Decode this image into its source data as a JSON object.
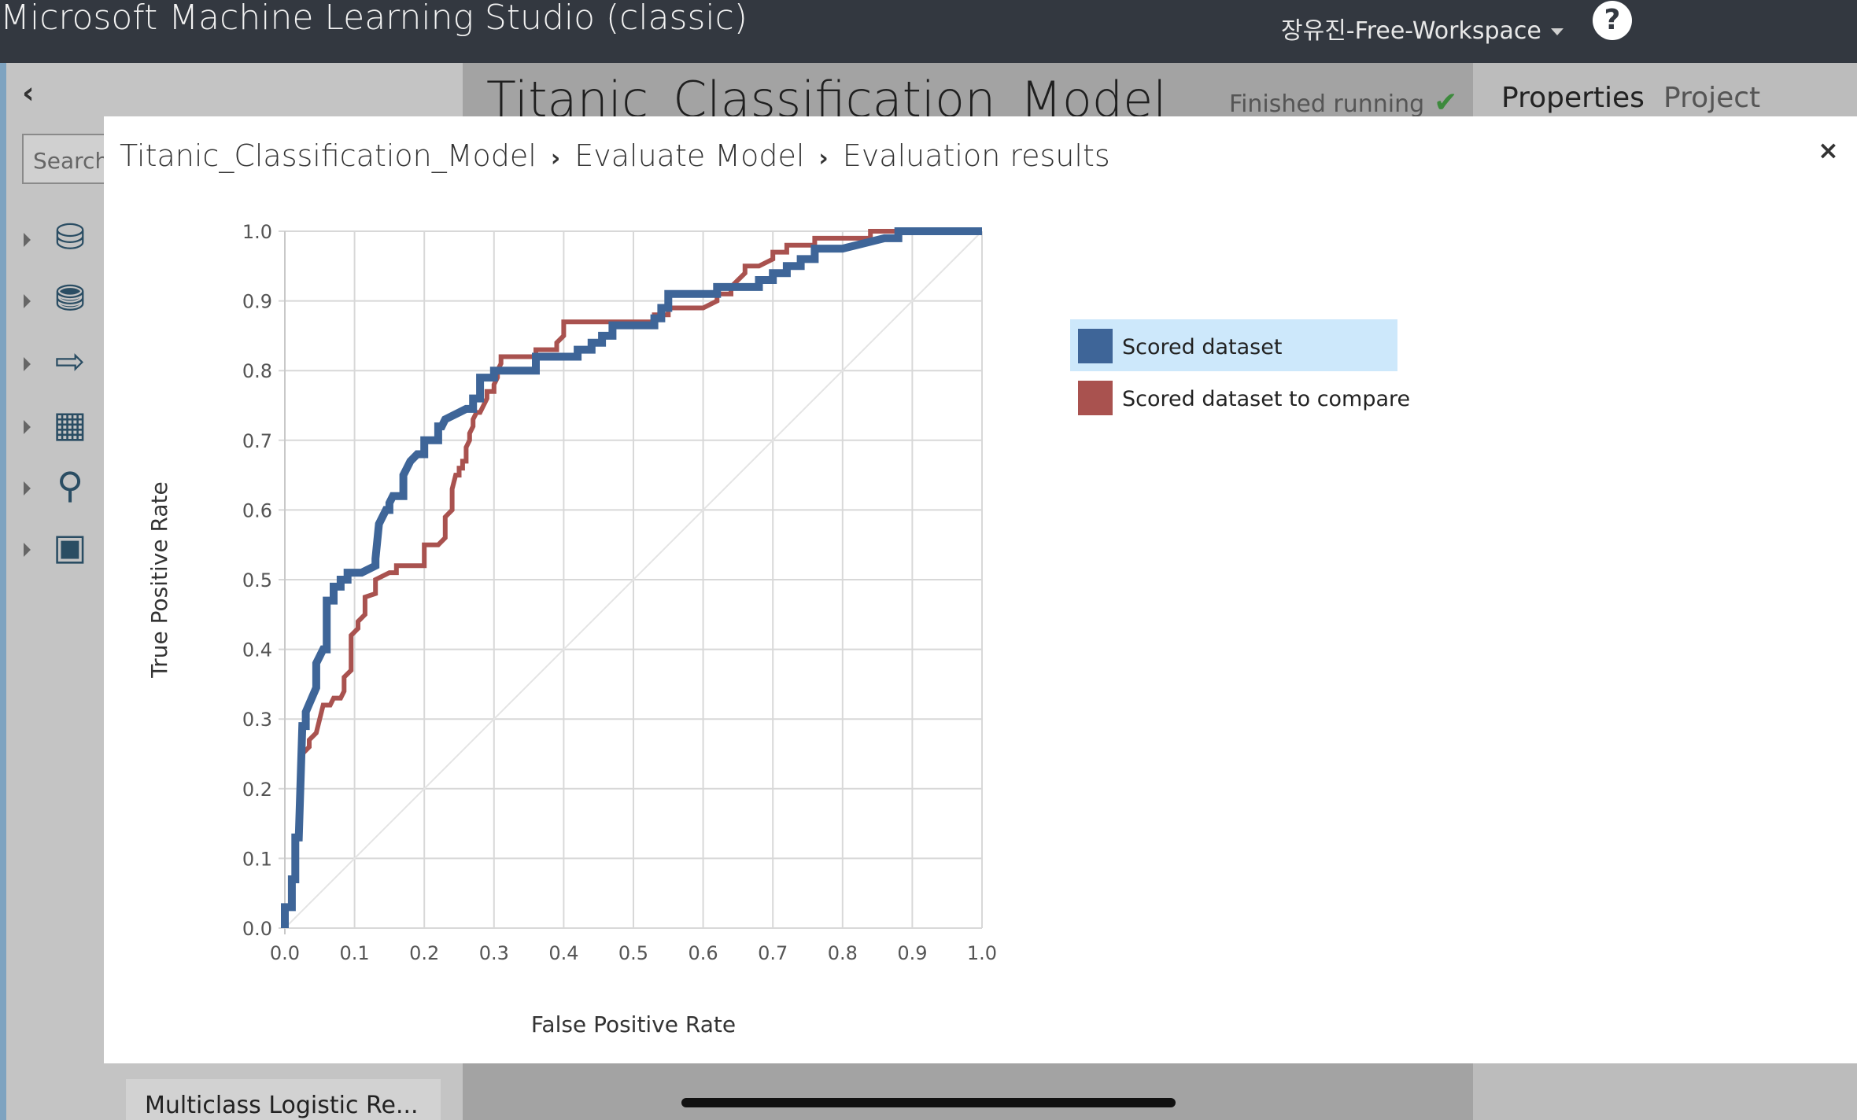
{
  "app": {
    "title": "Microsoft Machine Learning Studio (classic)",
    "workspace": "장유진-Free-Workspace",
    "help_label": "?"
  },
  "background": {
    "search_placeholder": "Search",
    "experiment_title": "Titanic_Classification_Model",
    "status": "Finished running",
    "tabs": [
      "Properties",
      "Project"
    ],
    "bottom_item": "Multiclass Logistic Re..."
  },
  "modal": {
    "breadcrumb": [
      "Titanic_Classification_Model",
      "Evaluate Model",
      "Evaluation results"
    ],
    "close_label": "×"
  },
  "colors": {
    "series1": "#3e6598",
    "series2": "#a9524f",
    "diagonal": "#e4e4e4",
    "grid": "#d8d8d8"
  },
  "chart_data": {
    "type": "line",
    "xlabel": "False Positive Rate",
    "ylabel": "True Positive Rate",
    "xlim": [
      0,
      1
    ],
    "ylim": [
      0,
      1
    ],
    "xticks": [
      "0.0",
      "0.1",
      "0.2",
      "0.3",
      "0.4",
      "0.5",
      "0.6",
      "0.7",
      "0.8",
      "0.9",
      "1.0"
    ],
    "yticks": [
      "0.0",
      "0.1",
      "0.2",
      "0.3",
      "0.4",
      "0.5",
      "0.6",
      "0.7",
      "0.8",
      "0.9",
      "1.0"
    ],
    "grid": true,
    "diagonal_reference": true,
    "legend_placement": "right",
    "series": [
      {
        "name": "Scored dataset",
        "selected": true,
        "x": [
          0,
          0,
          0.01,
          0.01,
          0.015,
          0.015,
          0.02,
          0.025,
          0.03,
          0.03,
          0.045,
          0.045,
          0.05,
          0.055,
          0.06,
          0.06,
          0.07,
          0.07,
          0.08,
          0.08,
          0.09,
          0.09,
          0.11,
          0.13,
          0.13,
          0.135,
          0.14,
          0.145,
          0.15,
          0.15,
          0.155,
          0.16,
          0.17,
          0.17,
          0.18,
          0.19,
          0.19,
          0.2,
          0.2,
          0.21,
          0.22,
          0.22,
          0.225,
          0.23,
          0.25,
          0.26,
          0.27,
          0.27,
          0.28,
          0.28,
          0.29,
          0.29,
          0.3,
          0.3,
          0.33,
          0.36,
          0.36,
          0.38,
          0.42,
          0.42,
          0.44,
          0.44,
          0.455,
          0.455,
          0.47,
          0.47,
          0.49,
          0.53,
          0.53,
          0.54,
          0.54,
          0.55,
          0.55,
          0.62,
          0.62,
          0.66,
          0.68,
          0.68,
          0.7,
          0.7,
          0.72,
          0.72,
          0.74,
          0.74,
          0.76,
          0.76,
          0.8,
          0.86,
          0.86,
          0.88,
          0.88,
          1
        ],
        "y": [
          0,
          0.03,
          0.03,
          0.07,
          0.07,
          0.13,
          0.13,
          0.29,
          0.29,
          0.31,
          0.345,
          0.38,
          0.39,
          0.4,
          0.4,
          0.47,
          0.47,
          0.49,
          0.49,
          0.5,
          0.5,
          0.51,
          0.51,
          0.52,
          0.53,
          0.58,
          0.59,
          0.6,
          0.6,
          0.61,
          0.62,
          0.62,
          0.62,
          0.65,
          0.67,
          0.68,
          0.68,
          0.68,
          0.7,
          0.7,
          0.7,
          0.72,
          0.72,
          0.73,
          0.74,
          0.745,
          0.745,
          0.76,
          0.76,
          0.79,
          0.79,
          0.79,
          0.79,
          0.8,
          0.8,
          0.8,
          0.82,
          0.82,
          0.82,
          0.83,
          0.83,
          0.84,
          0.84,
          0.85,
          0.85,
          0.865,
          0.865,
          0.865,
          0.875,
          0.875,
          0.89,
          0.89,
          0.91,
          0.91,
          0.92,
          0.92,
          0.92,
          0.93,
          0.93,
          0.94,
          0.94,
          0.95,
          0.95,
          0.96,
          0.96,
          0.975,
          0.975,
          0.99,
          0.99,
          0.99,
          1,
          1
        ]
      },
      {
        "name": "Scored dataset to compare",
        "x": [
          0,
          0,
          0.01,
          0.01,
          0.015,
          0.015,
          0.02,
          0.025,
          0.025,
          0.035,
          0.035,
          0.045,
          0.045,
          0.055,
          0.065,
          0.07,
          0.08,
          0.085,
          0.085,
          0.095,
          0.095,
          0.105,
          0.105,
          0.115,
          0.115,
          0.13,
          0.13,
          0.15,
          0.16,
          0.16,
          0.19,
          0.2,
          0.2,
          0.22,
          0.23,
          0.23,
          0.24,
          0.24,
          0.245,
          0.25,
          0.25,
          0.255,
          0.255,
          0.26,
          0.26,
          0.265,
          0.265,
          0.27,
          0.27,
          0.275,
          0.28,
          0.29,
          0.29,
          0.3,
          0.3,
          0.305,
          0.305,
          0.31,
          0.31,
          0.35,
          0.36,
          0.36,
          0.39,
          0.39,
          0.4,
          0.4,
          0.47,
          0.52,
          0.53,
          0.53,
          0.55,
          0.55,
          0.6,
          0.62,
          0.62,
          0.64,
          0.64,
          0.65,
          0.66,
          0.66,
          0.68,
          0.7,
          0.7,
          0.71,
          0.72,
          0.72,
          0.74,
          0.76,
          0.76,
          0.78,
          0.78,
          0.84,
          0.84,
          0.85,
          0.85,
          1
        ],
        "y": [
          0,
          0.03,
          0.03,
          0.07,
          0.07,
          0.13,
          0.13,
          0.23,
          0.25,
          0.26,
          0.27,
          0.28,
          0.28,
          0.32,
          0.32,
          0.33,
          0.33,
          0.34,
          0.36,
          0.37,
          0.42,
          0.43,
          0.44,
          0.45,
          0.475,
          0.48,
          0.5,
          0.51,
          0.51,
          0.52,
          0.52,
          0.52,
          0.55,
          0.55,
          0.56,
          0.59,
          0.6,
          0.63,
          0.65,
          0.65,
          0.66,
          0.66,
          0.67,
          0.67,
          0.69,
          0.7,
          0.71,
          0.72,
          0.73,
          0.74,
          0.74,
          0.76,
          0.77,
          0.77,
          0.78,
          0.79,
          0.8,
          0.81,
          0.82,
          0.82,
          0.82,
          0.83,
          0.83,
          0.84,
          0.85,
          0.87,
          0.87,
          0.87,
          0.87,
          0.88,
          0.88,
          0.89,
          0.89,
          0.9,
          0.91,
          0.91,
          0.92,
          0.93,
          0.94,
          0.95,
          0.95,
          0.96,
          0.97,
          0.97,
          0.97,
          0.98,
          0.98,
          0.98,
          0.99,
          0.99,
          0.99,
          0.99,
          1,
          1,
          1,
          1
        ]
      }
    ]
  }
}
